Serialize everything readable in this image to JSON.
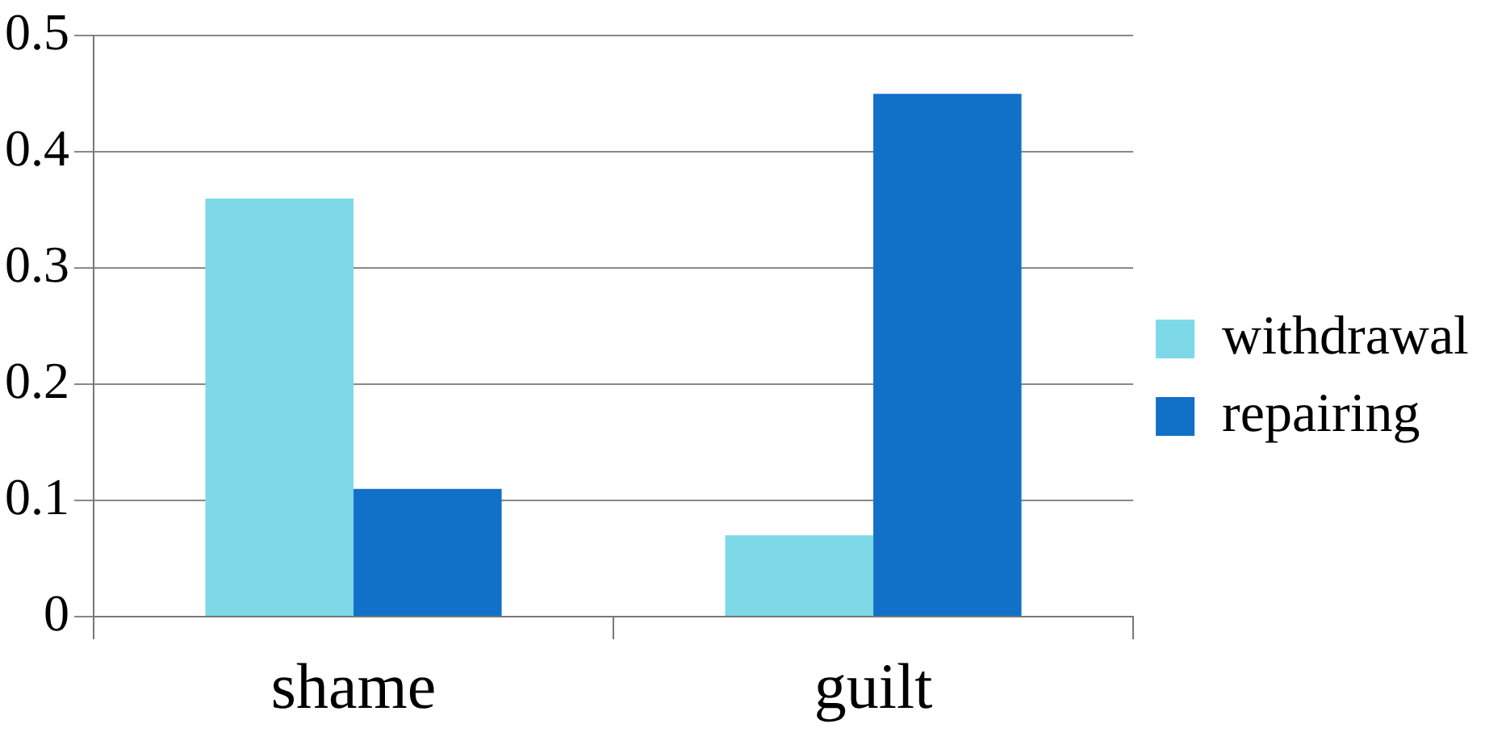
{
  "chart_data": {
    "type": "bar",
    "categories": [
      "shame",
      "guilt"
    ],
    "series": [
      {
        "name": "withdrawal",
        "color": "#7dd8e8",
        "values": [
          0.36,
          0.07
        ]
      },
      {
        "name": "repairing",
        "color": "#1170c8",
        "values": [
          0.11,
          0.45
        ]
      }
    ],
    "ylim": [
      0,
      0.5
    ],
    "yticks": [
      {
        "value": 0,
        "label": "0"
      },
      {
        "value": 0.1,
        "label": "0.1"
      },
      {
        "value": 0.2,
        "label": "0.2"
      },
      {
        "value": 0.3,
        "label": "0.3"
      },
      {
        "value": 0.4,
        "label": "0.4"
      },
      {
        "value": 0.5,
        "label": "0.5"
      }
    ],
    "grid": "y",
    "legend": "right"
  }
}
